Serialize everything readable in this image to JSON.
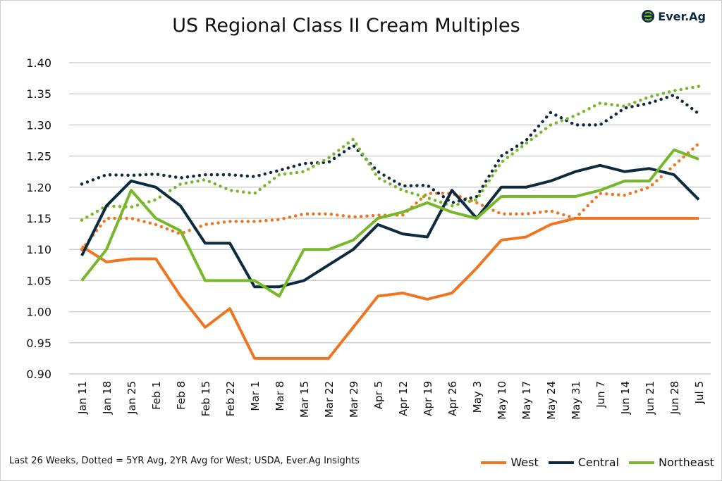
{
  "logo_text": "Ever.Ag",
  "footnote": "Last 26 Weeks, Dotted = 5YR Avg, 2YR Avg for West; USDA, Ever.Ag Insights",
  "chart_data": {
    "type": "line",
    "title": "US Regional Class II Cream Multiples",
    "xlabel": "",
    "ylabel": "",
    "ylim": [
      0.9,
      1.4
    ],
    "yticks": [
      "0.90",
      "0.95",
      "1.00",
      "1.05",
      "1.10",
      "1.15",
      "1.20",
      "1.25",
      "1.30",
      "1.35",
      "1.40"
    ],
    "grid": true,
    "legend_position": "bottom-right",
    "categories": [
      "Jan 11",
      "Jan 18",
      "Jan 25",
      "Feb 1",
      "Feb 8",
      "Feb 15",
      "Feb 22",
      "Mar 1",
      "Mar 8",
      "Mar 15",
      "Mar 22",
      "Mar 29",
      "Apr 5",
      "Apr 12",
      "Apr 19",
      "Apr 26",
      "May 3",
      "May 10",
      "May 17",
      "May 24",
      "May 31",
      "Jun 7",
      "Jun 14",
      "Jun 21",
      "Jun 28",
      "Jul 5"
    ],
    "series": [
      {
        "name": "West",
        "color": "#ee7623",
        "style": "solid",
        "values": [
          1.105,
          1.08,
          1.085,
          1.085,
          1.025,
          0.975,
          1.005,
          0.925,
          0.925,
          0.925,
          0.925,
          0.975,
          1.025,
          1.03,
          1.02,
          1.03,
          1.07,
          1.115,
          1.12,
          1.14,
          1.15,
          1.15,
          1.15,
          1.15,
          1.15,
          1.15
        ]
      },
      {
        "name": "Central",
        "color": "#0d2b3e",
        "style": "solid",
        "values": [
          1.09,
          1.17,
          1.21,
          1.2,
          1.17,
          1.11,
          1.11,
          1.04,
          1.04,
          1.05,
          1.075,
          1.1,
          1.14,
          1.125,
          1.12,
          1.195,
          1.15,
          1.2,
          1.2,
          1.21,
          1.225,
          1.235,
          1.225,
          1.23,
          1.22,
          1.18
        ]
      },
      {
        "name": "Northeast",
        "color": "#76b82a",
        "style": "solid",
        "values": [
          1.05,
          1.1,
          1.195,
          1.15,
          1.13,
          1.05,
          1.05,
          1.05,
          1.025,
          1.1,
          1.1,
          1.115,
          1.15,
          1.16,
          1.175,
          1.16,
          1.15,
          1.185,
          1.185,
          1.185,
          1.185,
          1.195,
          1.21,
          1.21,
          1.26,
          1.245
        ]
      },
      {
        "color": "#ee7623",
        "style": "dotted",
        "values": [
          1.1,
          1.15,
          1.15,
          1.14,
          1.125,
          1.14,
          1.145,
          1.145,
          1.148,
          1.157,
          1.157,
          1.152,
          1.155,
          1.155,
          1.19,
          1.19,
          1.175,
          1.157,
          1.157,
          1.162,
          1.15,
          1.19,
          1.187,
          1.2,
          1.235,
          1.27
        ]
      },
      {
        "color": "#0d2b3e",
        "style": "dotted",
        "values": [
          1.205,
          1.22,
          1.219,
          1.221,
          1.215,
          1.22,
          1.22,
          1.217,
          1.227,
          1.238,
          1.24,
          1.267,
          1.225,
          1.202,
          1.203,
          1.175,
          1.185,
          1.25,
          1.275,
          1.32,
          1.3,
          1.3,
          1.327,
          1.335,
          1.348,
          1.318
        ]
      },
      {
        "color": "#76b82a",
        "style": "dotted",
        "values": [
          1.147,
          1.17,
          1.168,
          1.18,
          1.205,
          1.212,
          1.195,
          1.19,
          1.22,
          1.225,
          1.247,
          1.277,
          1.215,
          1.195,
          1.183,
          1.17,
          1.18,
          1.24,
          1.27,
          1.3,
          1.315,
          1.335,
          1.33,
          1.345,
          1.355,
          1.362
        ]
      }
    ]
  }
}
